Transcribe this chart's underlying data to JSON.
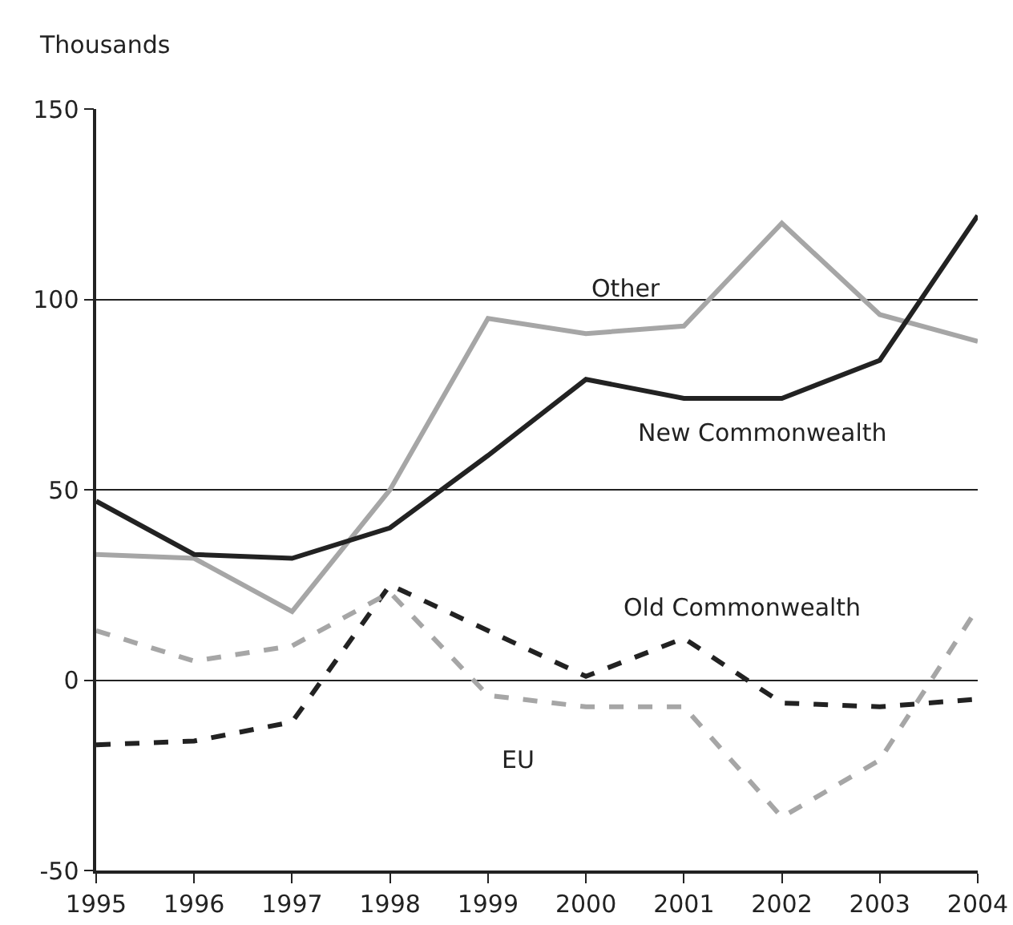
{
  "chart_data": {
    "type": "line",
    "ylabel": "Thousands",
    "x": [
      1995,
      1996,
      1997,
      1998,
      1999,
      2000,
      2001,
      2002,
      2003,
      2004
    ],
    "series": [
      {
        "name": "Other",
        "color": "#a6a6a6",
        "line_style": "solid",
        "values": [
          33,
          32,
          18,
          50,
          95,
          91,
          93,
          120,
          96,
          89
        ]
      },
      {
        "name": "New Commonwealth",
        "color": "#222222",
        "line_style": "solid",
        "values": [
          47,
          33,
          32,
          40,
          59,
          79,
          74,
          74,
          84,
          122
        ]
      },
      {
        "name": "Old Commonwealth",
        "color": "#222222",
        "line_style": "dashed",
        "values": [
          -17,
          -16,
          -11,
          25,
          13,
          1,
          11,
          -6,
          -7,
          -5
        ]
      },
      {
        "name": "EU",
        "color": "#a6a6a6",
        "line_style": "dashed",
        "values": [
          13,
          5,
          9,
          23,
          -4,
          -7,
          -7,
          -36,
          -21,
          19
        ]
      }
    ],
    "xlim": [
      1995,
      2004
    ],
    "xticks": [
      1995,
      1996,
      1997,
      1998,
      1999,
      2000,
      2001,
      2002,
      2003,
      2004
    ],
    "ylim": [
      -50,
      150
    ],
    "yticks": [
      -50,
      0,
      50,
      100,
      150
    ],
    "grid": "y",
    "legend": false,
    "marker": "none"
  }
}
